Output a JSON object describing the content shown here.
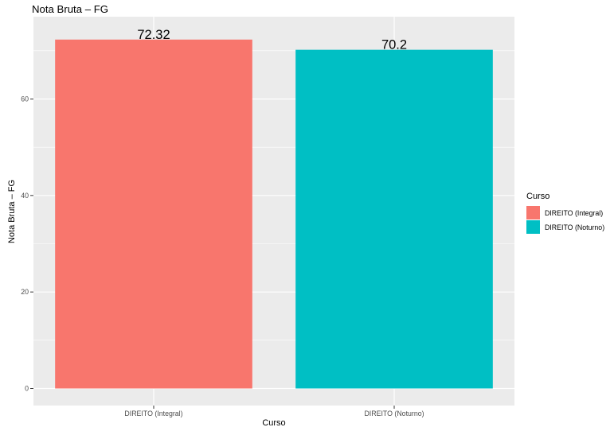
{
  "chart_data": {
    "type": "bar",
    "title": "Nota Bruta – FG",
    "xlabel": "Curso",
    "ylabel": "Nota Bruta – FG",
    "categories": [
      "DIREITO (Integral)",
      "DIREITO (Noturno)"
    ],
    "values": [
      72.32,
      70.2
    ],
    "value_labels": [
      "72.32",
      "70.2"
    ],
    "colors": [
      "#F8766D",
      "#00BFC4"
    ],
    "ylim": [
      0,
      75.6
    ],
    "yticks": [
      0,
      20,
      40,
      60
    ],
    "grid": true,
    "panel_background": "#EBEBEB",
    "legend": {
      "title": "Curso",
      "position": "right",
      "entries": [
        "DIREITO (Integral)",
        "DIREITO (Noturno)"
      ]
    }
  }
}
